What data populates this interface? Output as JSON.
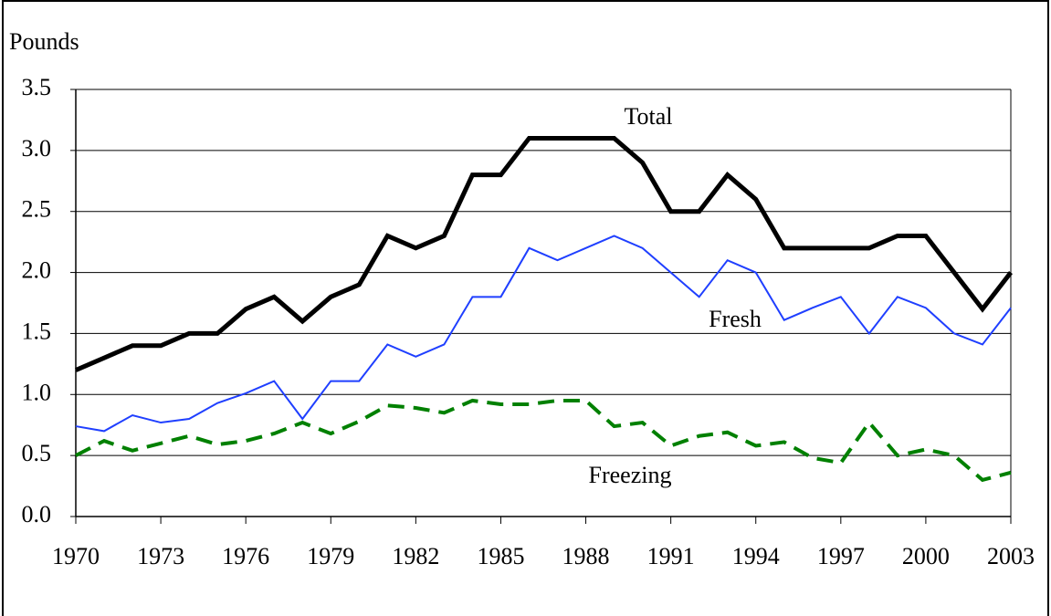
{
  "chart_data": {
    "type": "line",
    "y_label": "Pounds",
    "x": [
      1970,
      1971,
      1972,
      1973,
      1974,
      1975,
      1976,
      1977,
      1978,
      1979,
      1980,
      1981,
      1982,
      1983,
      1984,
      1985,
      1986,
      1987,
      1988,
      1989,
      1990,
      1991,
      1992,
      1993,
      1994,
      1995,
      1996,
      1997,
      1998,
      1999,
      2000,
      2001,
      2002,
      2003
    ],
    "series": [
      {
        "name": "Total",
        "color": "#000000",
        "values": [
          1.2,
          1.3,
          1.4,
          1.4,
          1.5,
          1.5,
          1.7,
          1.8,
          1.6,
          1.8,
          1.9,
          2.3,
          2.2,
          2.3,
          2.8,
          2.8,
          3.1,
          3.1,
          3.1,
          3.1,
          2.9,
          2.5,
          2.5,
          2.8,
          2.6,
          2.2,
          2.2,
          2.2,
          2.2,
          2.3,
          2.3,
          2.0,
          1.7,
          2.0
        ]
      },
      {
        "name": "Fresh",
        "color": "#1f3fff",
        "values": [
          0.74,
          0.7,
          0.83,
          0.77,
          0.8,
          0.93,
          1.01,
          1.11,
          0.8,
          1.11,
          1.11,
          1.41,
          1.31,
          1.41,
          1.8,
          1.8,
          2.2,
          2.1,
          2.2,
          2.3,
          2.2,
          2.0,
          1.8,
          2.1,
          2.0,
          1.61,
          1.71,
          1.8,
          1.5,
          1.8,
          1.71,
          1.5,
          1.41,
          1.71
        ]
      },
      {
        "name": "Freezing",
        "color": "#008000",
        "values": [
          0.5,
          0.62,
          0.54,
          0.6,
          0.66,
          0.59,
          0.62,
          0.68,
          0.77,
          0.68,
          0.78,
          0.91,
          0.89,
          0.85,
          0.95,
          0.92,
          0.92,
          0.95,
          0.95,
          0.74,
          0.77,
          0.58,
          0.66,
          0.69,
          0.58,
          0.61,
          0.48,
          0.44,
          0.77,
          0.5,
          0.55,
          0.5,
          0.3,
          0.36
        ]
      }
    ],
    "xlim": [
      1970,
      2003
    ],
    "xticks": [
      1970,
      1973,
      1976,
      1979,
      1982,
      1985,
      1988,
      1991,
      1994,
      1997,
      2000,
      2003
    ],
    "ylim": [
      0,
      3.5
    ],
    "yticks": [
      {
        "value": 0,
        "label": "0.0"
      },
      0.5,
      {
        "value": 1,
        "label": "1.0"
      },
      1.5,
      {
        "value": 2,
        "label": "2.0"
      },
      2.5,
      {
        "value": 3,
        "label": "3.0"
      },
      3.5
    ],
    "grid": true
  }
}
